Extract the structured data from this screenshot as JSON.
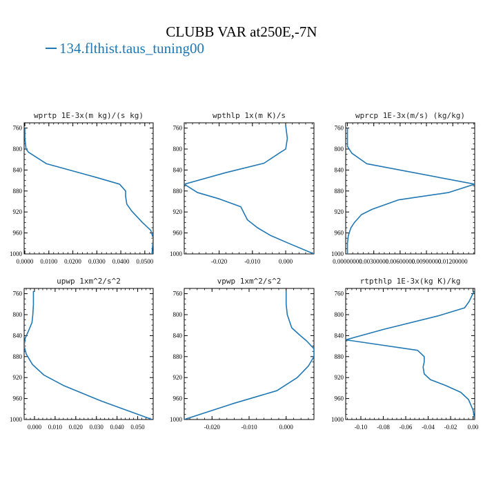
{
  "title": "CLUBB VAR at250E,-7N",
  "legend": {
    "label": "134.flthist.taus_tuning00",
    "color": "#1f77b4"
  },
  "chart_data": [
    {
      "type": "line",
      "title": "wprtp  1E-3x(m kg)/(s kg)",
      "xlim": [
        -0.0003,
        0.0535
      ],
      "xticks": [
        0.0,
        0.01,
        0.02,
        0.03,
        0.04,
        0.05
      ],
      "xticklabels": [
        "0.0000",
        "0.0100",
        "0.0200",
        "0.0300",
        "0.0400",
        "0.0500"
      ],
      "ylim": [
        1000,
        750
      ],
      "yticks": [
        760,
        800,
        840,
        880,
        920,
        960,
        1000
      ],
      "series": [
        {
          "x": [
            0.0,
            0.0,
            0.0005,
            0.0015,
            0.009,
            0.0305,
            0.0395,
            0.042,
            0.042,
            0.0425,
            0.0445,
            0.049,
            0.0525,
            0.0535,
            0.053
          ],
          "y": [
            760,
            780,
            800,
            806,
            828,
            855,
            867,
            880,
            890,
            905,
            918,
            940,
            955,
            970,
            1000
          ]
        }
      ]
    },
    {
      "type": "line",
      "title": "wpthlp  1x(m K)/s",
      "xlim": [
        -0.0305,
        0.0085
      ],
      "xticks": [
        -0.02,
        -0.01,
        0.0
      ],
      "xticklabels": [
        "-0.020",
        "-0.010",
        "0.000"
      ],
      "ylim": [
        1000,
        750
      ],
      "yticks": [
        760,
        800,
        840,
        880,
        920,
        960,
        1000
      ],
      "series": [
        {
          "x": [
            0.0,
            0.0005,
            0.0,
            -0.0015,
            -0.0065,
            -0.018,
            -0.0305,
            -0.0265,
            -0.02,
            -0.0135,
            -0.0115,
            -0.0085,
            -0.0045,
            0.001,
            0.0085
          ],
          "y": [
            755,
            780,
            800,
            806,
            827,
            845,
            867,
            883,
            895,
            910,
            935,
            950,
            965,
            980,
            1000
          ]
        }
      ]
    },
    {
      "type": "line",
      "title": "wprcp  1E-3x(m/s) (kg/kg)",
      "xlim": [
        -0.0002,
        0.0145
      ],
      "xticks": [
        0.0,
        0.003,
        0.006,
        0.009,
        0.012
      ],
      "xticklabels": [
        "0.00000000",
        "0.00300000",
        "0.00600000",
        "0.00900000",
        "0.01200000"
      ],
      "ylim": [
        1000,
        750
      ],
      "yticks": [
        760,
        800,
        840,
        880,
        920,
        960,
        1000
      ],
      "series": [
        {
          "x": [
            0.0,
            0.0,
            0.0005,
            0.0022,
            0.0145,
            0.0115,
            0.0058,
            0.0028,
            0.0016,
            0.0008,
            0.0004,
            0.0001,
            0.0,
            0.0
          ],
          "y": [
            760,
            795,
            808,
            828,
            867,
            883,
            897,
            915,
            925,
            940,
            950,
            965,
            980,
            1000
          ]
        }
      ]
    },
    {
      "type": "line",
      "title": "upwp  1xm^2/s^2",
      "xlim": [
        -0.005,
        0.0575
      ],
      "xticks": [
        0.0,
        0.01,
        0.02,
        0.03,
        0.04,
        0.05
      ],
      "xticklabels": [
        "0.000",
        "0.010",
        "0.020",
        "0.030",
        "0.040",
        "0.050"
      ],
      "ylim": [
        1000,
        750
      ],
      "yticks": [
        760,
        800,
        840,
        880,
        920,
        960,
        1000
      ],
      "series": [
        {
          "x": [
            -0.0005,
            -0.0005,
            -0.0008,
            -0.0012,
            -0.003,
            -0.0045,
            -0.005,
            -0.004,
            -0.001,
            0.0045,
            0.014,
            0.0325,
            0.057
          ],
          "y": [
            755,
            780,
            800,
            815,
            832,
            845,
            860,
            875,
            895,
            915,
            935,
            965,
            1000
          ]
        }
      ]
    },
    {
      "type": "line",
      "title": "vpwp  1xm^2/s^2",
      "xlim": [
        -0.0275,
        0.0075
      ],
      "xticks": [
        -0.02,
        -0.01,
        0.0
      ],
      "xticklabels": [
        "-0.020",
        "-0.010",
        "0.000"
      ],
      "ylim": [
        1000,
        750
      ],
      "yticks": [
        760,
        800,
        840,
        880,
        920,
        960,
        1000
      ],
      "series": [
        {
          "x": [
            0.0,
            0.0,
            0.0003,
            0.0015,
            0.0035,
            0.0055,
            0.0075,
            0.0075,
            0.006,
            0.003,
            -0.0025,
            -0.0145,
            -0.0275
          ],
          "y": [
            755,
            780,
            800,
            825,
            838,
            850,
            865,
            880,
            898,
            920,
            945,
            970,
            1000
          ]
        }
      ]
    },
    {
      "type": "line",
      "title": "rtpthlp  1E-3x(kg K)/kg",
      "xlim": [
        -0.1135,
        0.0015
      ],
      "xticks": [
        -0.1,
        -0.08,
        -0.06,
        -0.04,
        -0.02,
        0.0
      ],
      "xticklabels": [
        "-0.10",
        "-0.08",
        "-0.06",
        "-0.04",
        "-0.02",
        "0.00"
      ],
      "ylim": [
        1000,
        750
      ],
      "yticks": [
        760,
        800,
        840,
        880,
        920,
        960,
        1000
      ],
      "series": [
        {
          "x": [
            0.001,
            -0.0035,
            -0.0075,
            -0.0305,
            -0.0795,
            -0.1135,
            -0.0495,
            -0.0435,
            -0.0435,
            -0.0445,
            -0.0435,
            -0.038,
            -0.0245,
            -0.011,
            -0.004,
            0.0,
            0.0015
          ],
          "y": [
            755,
            775,
            787,
            802,
            828,
            848,
            868,
            880,
            890,
            900,
            913,
            924,
            935,
            948,
            962,
            982,
            1000
          ]
        }
      ]
    }
  ]
}
